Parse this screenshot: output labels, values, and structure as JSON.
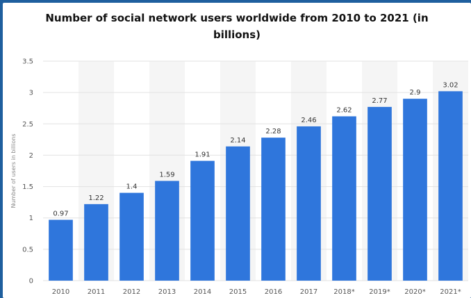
{
  "chart_data": {
    "type": "bar",
    "title": "Number of social network users worldwide from 2010 to 2021 (in billions)",
    "ylabel": "Number of users in billions",
    "xlabel": "",
    "categories": [
      "2010",
      "2011",
      "2012",
      "2013",
      "2014",
      "2015",
      "2016",
      "2017",
      "2018*",
      "2019*",
      "2020*",
      "2021*"
    ],
    "values": [
      0.97,
      1.22,
      1.4,
      1.59,
      1.91,
      2.14,
      2.28,
      2.46,
      2.62,
      2.77,
      2.9,
      3.02
    ],
    "value_labels": [
      "0.97",
      "1.22",
      "1.4",
      "1.59",
      "1.91",
      "2.14",
      "2.28",
      "2.46",
      "2.62",
      "2.77",
      "2.9",
      "3.02"
    ],
    "yticks": [
      "0",
      "0.5",
      "1",
      "1.5",
      "2",
      "2.5",
      "3",
      "3.5"
    ],
    "ylim": [
      0,
      3.5
    ],
    "bar_color": "#2f76dc",
    "grid": true
  }
}
